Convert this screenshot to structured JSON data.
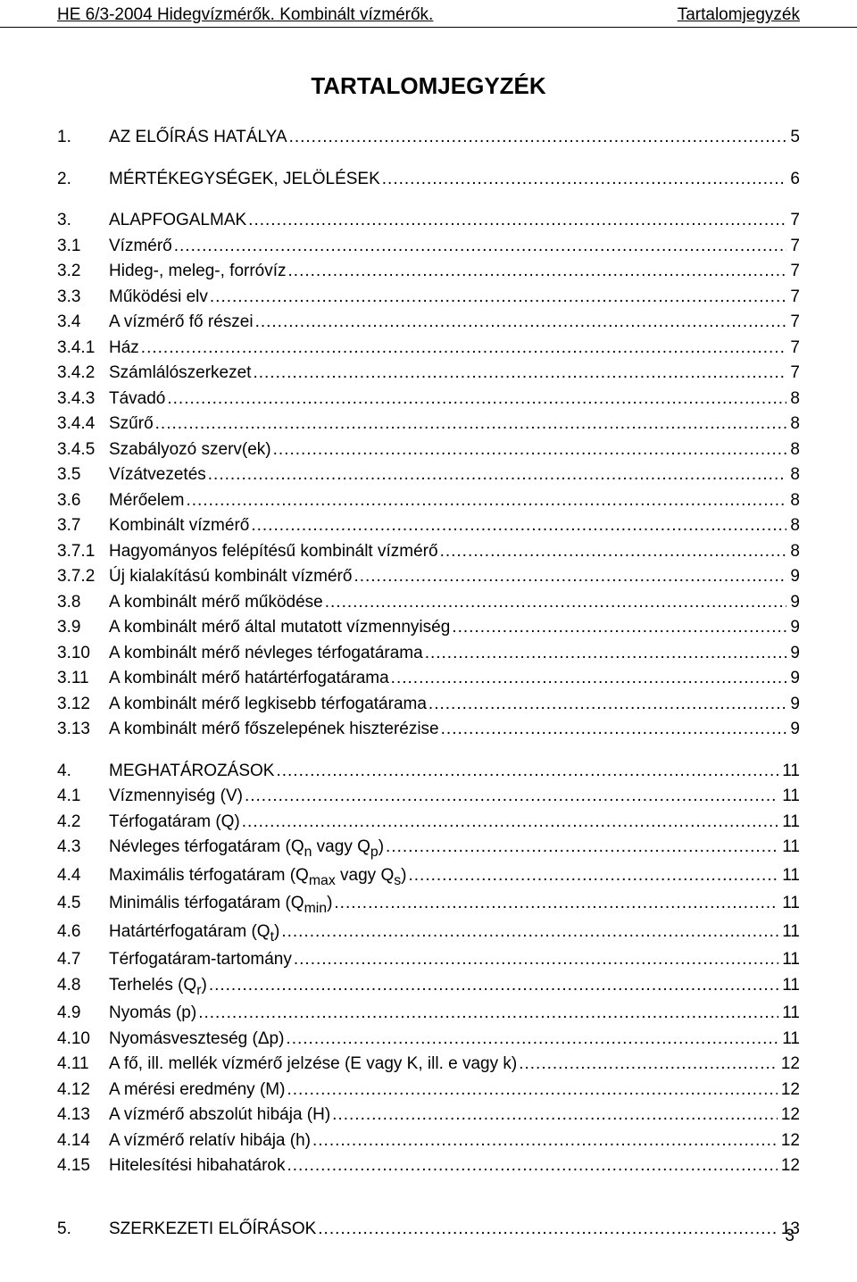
{
  "header": {
    "left": "HE 6/3-2004 Hidegvízmérők. Kombinált  vízmérők.",
    "right": "Tartalomjegyzék"
  },
  "title": "TARTALOMJEGYZÉK",
  "toc": [
    {
      "num": "1.",
      "label": "AZ ELŐÍRÁS HATÁLYA",
      "page": "5",
      "gap_before": false
    },
    {
      "num": "2.",
      "label": "MÉRTÉKEGYSÉGEK, JELÖLÉSEK",
      "page": "6",
      "gap_before": true
    },
    {
      "num": "3.",
      "label": "ALAPFOGALMAK",
      "page": "7",
      "gap_before": true
    },
    {
      "num": "3.1",
      "label": "Vízmérő",
      "page": "7",
      "gap_before": false
    },
    {
      "num": "3.2",
      "label": "Hideg-, meleg-, forróvíz",
      "page": "7",
      "gap_before": false
    },
    {
      "num": "3.3",
      "label": "Működési elv",
      "page": "7",
      "gap_before": false
    },
    {
      "num": "3.4",
      "label": "A vízmérő fő részei",
      "page": "7",
      "gap_before": false
    },
    {
      "num": "3.4.1",
      "label": "Ház",
      "page": "7",
      "gap_before": false
    },
    {
      "num": "3.4.2",
      "label": "Számlálószerkezet",
      "page": "7",
      "gap_before": false
    },
    {
      "num": "3.4.3",
      "label": "Távadó",
      "page": "8",
      "gap_before": false
    },
    {
      "num": "3.4.4",
      "label": "Szűrő",
      "page": "8",
      "gap_before": false
    },
    {
      "num": "3.4.5",
      "label": "Szabályozó szerv(ek)",
      "page": "8",
      "gap_before": false
    },
    {
      "num": "3.5",
      "label": "Vízátvezetés",
      "page": "8",
      "gap_before": false
    },
    {
      "num": "3.6",
      "label": "Mérőelem",
      "page": "8",
      "gap_before": false
    },
    {
      "num": "3.7",
      "label": "Kombinált vízmérő",
      "page": "8",
      "gap_before": false
    },
    {
      "num": "3.7.1",
      "label": "Hagyományos felépítésű kombinált vízmérő",
      "page": "8",
      "gap_before": false
    },
    {
      "num": "3.7.2",
      "label": "Új kialakítású kombinált vízmérő",
      "page": "9",
      "gap_before": false
    },
    {
      "num": "3.8",
      "label": "A kombinált mérő működése",
      "page": "9",
      "gap_before": false
    },
    {
      "num": "3.9",
      "label": "A kombinált mérő által mutatott vízmennyiség",
      "page": "9",
      "gap_before": false
    },
    {
      "num": "3.10",
      "label": "A kombinált mérő névleges térfogatárama",
      "page": "9",
      "gap_before": false
    },
    {
      "num": "3.11",
      "label": "A kombinált mérő határtérfogatárama",
      "page": "9",
      "gap_before": false
    },
    {
      "num": "3.12",
      "label": "A kombinált mérő legkisebb térfogatárama",
      "page": "9",
      "gap_before": false
    },
    {
      "num": "3.13",
      "label": "A kombinált mérő főszelepének hiszterézise",
      "page": "9",
      "gap_before": false
    },
    {
      "num": "4.",
      "label": "MEGHATÁROZÁSOK",
      "page": "11",
      "gap_before": true
    },
    {
      "num": "4.1",
      "label": "Vízmennyiség (V)",
      "page": "11",
      "gap_before": false
    },
    {
      "num": "4.2",
      "label": "Térfogatáram (Q)",
      "page": "11",
      "gap_before": false
    },
    {
      "num": "4.3",
      "label": "Névleges térfogatáram (Q",
      "sub1": "n",
      "mid1": " vagy Q",
      "sub2": "p",
      "tail": ")",
      "page": "11",
      "gap_before": false
    },
    {
      "num": "4.4",
      "label": "Maximális térfogatáram (Q",
      "sub1": "max",
      "mid1": " vagy Q",
      "sub2": "s",
      "tail": ")",
      "page": "11",
      "gap_before": false
    },
    {
      "num": "4.5",
      "label": "Minimális térfogatáram (Q",
      "sub1": "min",
      "tail": ")",
      "page": "11",
      "gap_before": false
    },
    {
      "num": "4.6",
      "label": "Határtérfogatáram (Q",
      "sub1": "t",
      "tail": ")",
      "page": "11",
      "gap_before": false
    },
    {
      "num": "4.7",
      "label": "Térfogatáram-tartomány",
      "page": "11",
      "gap_before": false
    },
    {
      "num": "4.8",
      "label": "Terhelés (Q",
      "sub1": "r",
      "tail": ")",
      "page": "11",
      "gap_before": false
    },
    {
      "num": "4.9",
      "label": "Nyomás (p)",
      "page": "11",
      "gap_before": false
    },
    {
      "num": "4.10",
      "label": "Nyomásveszteség (Δp)",
      "page": "11",
      "gap_before": false
    },
    {
      "num": "4.11",
      "label": "A fő, ill. mellék vízmérő jelzése (E vagy K, ill. e vagy k)",
      "page": "12",
      "gap_before": false
    },
    {
      "num": "4.12",
      "label": "A mérési eredmény (M)",
      "page": "12",
      "gap_before": false
    },
    {
      "num": "4.13",
      "label": "A vízmérő abszolút hibája (H)",
      "page": "12",
      "gap_before": false
    },
    {
      "num": "4.14",
      "label": "A vízmérő relatív hibája (h)",
      "page": "12",
      "gap_before": false
    },
    {
      "num": "4.15",
      "label": "Hitelesítési hibahatárok",
      "page": "12",
      "gap_before": false
    },
    {
      "num": "5.",
      "label": "SZERKEZETI ELŐÍRÁSOK",
      "page": "13",
      "gap_before": "big"
    }
  ],
  "page_number": "3"
}
